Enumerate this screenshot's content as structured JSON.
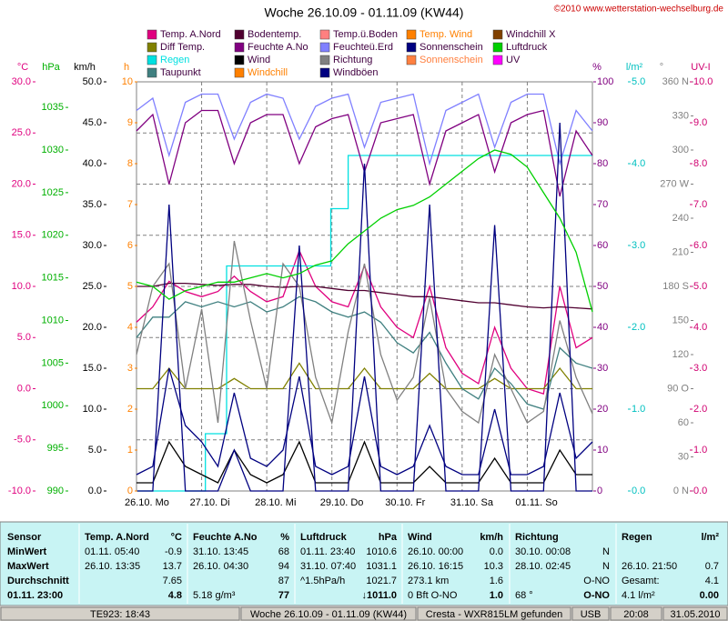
{
  "header": {
    "title": "Woche 26.10.09 - 01.11.09 (KW44)",
    "copyright": "©2010 www.wetterstation-wechselburg.de"
  },
  "chart_data": {
    "type": "line",
    "xlim": [
      0,
      168
    ],
    "day_starts": [
      0,
      24,
      48,
      72,
      96,
      120,
      144,
      168
    ],
    "categories": [
      "26.10. Mo",
      "27.10. Di",
      "28.10. Mi",
      "29.10. Do",
      "30.10. Fr",
      "31.10. Sa",
      "01.11. So"
    ],
    "x": [
      0,
      6,
      12,
      18,
      24,
      30,
      36,
      42,
      48,
      54,
      60,
      66,
      72,
      78,
      84,
      90,
      96,
      102,
      108,
      114,
      120,
      126,
      132,
      138,
      144,
      150,
      156,
      162,
      168
    ],
    "grid": true,
    "axes": [
      {
        "unit": "°C",
        "color": "#e0007f",
        "lim": [
          -10,
          30
        ],
        "ticks": [
          {
            "value": 30,
            "label": "30.0"
          },
          {
            "value": 25,
            "label": "25.0"
          },
          {
            "value": 20,
            "label": "20.0"
          },
          {
            "value": 15,
            "label": "15.0"
          },
          {
            "value": 10,
            "label": "10.0"
          },
          {
            "value": 5,
            "label": "5.0"
          },
          {
            "value": 0,
            "label": "0.0"
          },
          {
            "value": -5,
            "label": "-5.0"
          },
          {
            "value": -10,
            "label": "-10.0"
          }
        ]
      },
      {
        "unit": "hPa",
        "color": "#00b000",
        "lim": [
          990,
          1038
        ],
        "ticks": [
          1035,
          1030,
          1025,
          1020,
          1015,
          1010,
          1005,
          1000,
          995,
          990
        ]
      },
      {
        "unit": "km/h",
        "color": "#000000",
        "lim": [
          0,
          50
        ],
        "ticks": [
          {
            "value": 50,
            "label": "50.0"
          },
          {
            "value": 45,
            "label": "45.0"
          },
          {
            "value": 40,
            "label": "40.0"
          },
          {
            "value": 35,
            "label": "35.0"
          },
          {
            "value": 30,
            "label": "30.0"
          },
          {
            "value": 25,
            "label": "25.0"
          },
          {
            "value": 20,
            "label": "20.0"
          },
          {
            "value": 15,
            "label": "15.0"
          },
          {
            "value": 10,
            "label": "10.0"
          },
          {
            "value": 5,
            "label": "5.0"
          },
          {
            "value": 0,
            "label": "0.0"
          }
        ]
      },
      {
        "unit": "h",
        "color": "#ff8000",
        "lim": [
          0,
          10
        ],
        "ticks": [
          10,
          9,
          8,
          7,
          6,
          5,
          4,
          3,
          2,
          1,
          0
        ]
      },
      {
        "unit": "%",
        "color": "#800080",
        "lim": [
          0,
          100
        ],
        "ticks": [
          100,
          90,
          80,
          70,
          60,
          50,
          40,
          30,
          20,
          10,
          0
        ]
      },
      {
        "unit": "l/m²",
        "color": "#00c0c0",
        "lim": [
          0,
          5
        ],
        "ticks": [
          {
            "value": 5,
            "label": "5.0"
          },
          {
            "value": 4,
            "label": "4.0"
          },
          {
            "value": 3,
            "label": "3.0"
          },
          {
            "value": 2,
            "label": "2.0"
          },
          {
            "value": 1,
            "label": "1.0"
          },
          {
            "value": 0,
            "label": "0.0"
          }
        ]
      },
      {
        "unit": "°",
        "color": "#808080",
        "lim": [
          0,
          360
        ],
        "ticks": [
          {
            "value": 360,
            "label": "360 N"
          },
          330,
          300,
          {
            "value": 270,
            "label": "270 W"
          },
          240,
          210,
          {
            "value": 180,
            "label": "180 S"
          },
          150,
          120,
          {
            "value": 90,
            "label": "90 O"
          },
          60,
          30,
          {
            "value": 0,
            "label": "0 N"
          }
        ]
      },
      {
        "unit": "UV-I",
        "color": "#d00070",
        "lim": [
          0,
          10
        ],
        "ticks": [
          {
            "value": 10,
            "label": "10.0"
          },
          {
            "value": 9,
            "label": "9.0"
          },
          {
            "value": 8,
            "label": "8.0"
          },
          {
            "value": 7,
            "label": "7.0"
          },
          {
            "value": 6,
            "label": "6.0"
          },
          {
            "value": 5,
            "label": "5.0"
          },
          {
            "value": 4,
            "label": "4.0"
          },
          {
            "value": 3,
            "label": "3.0"
          },
          {
            "value": 2,
            "label": "2.0"
          },
          {
            "value": 1,
            "label": "1.0"
          },
          {
            "value": 0,
            "label": "0.0"
          }
        ]
      }
    ],
    "series": [
      {
        "name": "Temp. A.Nord",
        "color": "#e0007f",
        "axis": 0,
        "values": [
          6.5,
          8,
          10.5,
          9.5,
          9,
          9.5,
          11,
          9.5,
          8.5,
          9,
          13.5,
          10,
          8.5,
          8,
          12,
          8,
          6,
          5,
          10,
          4,
          1.5,
          0.5,
          6,
          2,
          0,
          -0.5,
          10,
          4,
          5
        ]
      },
      {
        "name": "Diff Temp.",
        "color": "#808000",
        "axis": 0,
        "values": [
          0,
          0,
          2,
          0,
          0,
          0,
          1,
          0,
          0,
          0,
          2.5,
          0,
          0,
          0,
          2,
          0,
          0,
          0,
          1.5,
          0,
          0,
          0,
          1,
          0,
          0,
          0,
          2,
          0,
          0
        ]
      },
      {
        "name": "Regen",
        "color": "#00e0e0",
        "axis": 5,
        "step": true,
        "x": [
          0,
          25.4,
          25.4,
          33.2,
          33.2,
          71.6,
          71.6,
          78,
          78,
          168
        ],
        "values": [
          0,
          0,
          0.7,
          0.7,
          2.75,
          2.75,
          3.45,
          3.45,
          4.1,
          4.1
        ]
      },
      {
        "name": "Taupunkt",
        "color": "#408080",
        "axis": 0,
        "values": [
          5,
          7,
          7,
          8.5,
          8,
          8.5,
          8,
          8.5,
          7.5,
          8,
          9,
          8.5,
          7.5,
          7,
          7.5,
          6.5,
          4.5,
          3.5,
          5.5,
          2.5,
          0,
          -1,
          2,
          0.5,
          -1.5,
          -2,
          4,
          2.5,
          2
        ]
      },
      {
        "name": "Bodentemp.",
        "color": "#500030",
        "axis": 0,
        "values": [
          10,
          10,
          10.3,
          10.3,
          10.2,
          10.1,
          10.2,
          10.2,
          10,
          9.9,
          10,
          10,
          9.8,
          9.6,
          9.6,
          9.4,
          9.2,
          9,
          9,
          8.8,
          8.6,
          8.4,
          8.4,
          8.2,
          8,
          7.9,
          8,
          7.9,
          7.8
        ]
      },
      {
        "name": "Feuchte A.No",
        "color": "#800080",
        "axis": 4,
        "values": [
          88,
          92,
          75,
          90,
          93,
          93,
          80,
          90,
          92,
          92,
          80,
          89,
          91,
          92,
          78,
          90,
          91,
          92,
          75,
          88,
          90,
          92,
          78,
          90,
          92,
          93,
          72,
          88,
          82
        ]
      },
      {
        "name": "Wind",
        "color": "#000000",
        "axis": 2,
        "values": [
          1,
          1,
          6,
          3,
          2,
          1,
          5,
          2,
          1,
          2,
          6,
          1,
          1,
          1,
          6,
          1,
          1,
          1,
          3,
          1,
          1,
          1,
          4,
          1,
          1,
          1,
          5,
          2,
          2
        ]
      },
      {
        "name": "Windchill",
        "color": "#ff8000"
      },
      {
        "name": "Temp.ü.Boden",
        "color": "#ff8080"
      },
      {
        "name": "Feuchteü.Erd",
        "color": "#8080ff",
        "axis": 4,
        "values": [
          93,
          96,
          82,
          95,
          97,
          97,
          86,
          95,
          97,
          96,
          86,
          94,
          96,
          97,
          84,
          95,
          96,
          97,
          80,
          93,
          95,
          97,
          84,
          95,
          97,
          97,
          80,
          93,
          88
        ]
      },
      {
        "name": "Richtung",
        "color": "#808080",
        "axis": 6,
        "values": [
          120,
          180,
          200,
          90,
          160,
          60,
          220,
          150,
          90,
          200,
          180,
          100,
          60,
          140,
          200,
          120,
          80,
          100,
          170,
          90,
          70,
          60,
          120,
          90,
          60,
          70,
          150,
          100,
          68
        ]
      },
      {
        "name": "Windböen",
        "color": "#000080",
        "axis": 2,
        "values": [
          2,
          3,
          15,
          8,
          6,
          3,
          12,
          4,
          3,
          5,
          14,
          3,
          2,
          3,
          14,
          3,
          2,
          3,
          8,
          3,
          2,
          2,
          10,
          2,
          2,
          3,
          12,
          4,
          6
        ]
      },
      {
        "name": "Temp. Wind",
        "color": "#ff8000"
      },
      {
        "name": "Sonnenschein",
        "color": "#000080",
        "axis": 3,
        "values": [
          0,
          0,
          7,
          0,
          0,
          0,
          1,
          0,
          0,
          0,
          6,
          0,
          0,
          0,
          8,
          0,
          0,
          0,
          7,
          0,
          0,
          0,
          6.5,
          0,
          0,
          0,
          9,
          0,
          0
        ]
      },
      {
        "name": "Sonnenschein",
        "color": "#ff8040"
      },
      {
        "name": "Windchill X",
        "color": "#804000"
      },
      {
        "name": "Luftdruck",
        "color": "#00d000",
        "axis": 1,
        "values": [
          1014.5,
          1014,
          1012.5,
          1013.5,
          1014,
          1014.5,
          1014.5,
          1015,
          1015.5,
          1015,
          1015.5,
          1016.5,
          1017,
          1019,
          1020.5,
          1022,
          1023,
          1023.5,
          1024.5,
          1026,
          1027.5,
          1029,
          1030,
          1029.5,
          1028,
          1025,
          1022,
          1018,
          1011
        ]
      },
      {
        "name": "UV",
        "color": "#ff00ff"
      }
    ]
  },
  "table": {
    "columns": [
      {
        "header": [
          "Sensor"
        ],
        "rows": [
          [
            "MinWert"
          ],
          [
            "MaxWert"
          ],
          [
            "Durchschnitt"
          ],
          [
            "01.11. 23:00"
          ]
        ]
      },
      {
        "header": [
          "Temp. A.Nord",
          "°C"
        ],
        "rows": [
          [
            "01.11. 05:40",
            "-0.9"
          ],
          [
            "26.10. 13:35",
            "13.7"
          ],
          [
            null,
            "7.65"
          ],
          [
            null,
            "4.8"
          ]
        ]
      },
      {
        "header": [
          "Feuchte A.No",
          "%"
        ],
        "rows": [
          [
            "31.10. 13:45",
            "68"
          ],
          [
            "26.10. 04:30",
            "94"
          ],
          [
            null,
            "87"
          ],
          [
            "5.18 g/m³",
            "77"
          ]
        ]
      },
      {
        "header": [
          "Luftdruck",
          "hPa"
        ],
        "rows": [
          [
            "01.11. 23:40",
            "1010.6"
          ],
          [
            "31.10. 07:40",
            "1031.1"
          ],
          [
            "^1.5hPa/h",
            "1021.7"
          ],
          [
            null,
            "↓1011.0"
          ]
        ]
      },
      {
        "header": [
          "Wind",
          "km/h"
        ],
        "rows": [
          [
            "26.10. 00:00",
            "0.0"
          ],
          [
            "26.10. 16:15",
            "10.3"
          ],
          [
            "273.1 km",
            "1.6"
          ],
          [
            "0 Bft O-NO",
            "1.0"
          ]
        ]
      },
      {
        "header": [
          "Richtung"
        ],
        "rows": [
          [
            "30.10. 00:08",
            "N"
          ],
          [
            "28.10. 02:45",
            "N"
          ],
          [
            null,
            "O-NO"
          ],
          [
            "68 °",
            "O-NO"
          ]
        ]
      },
      {
        "header": [
          "Regen",
          "l/m²"
        ],
        "rows": [
          [
            null,
            null
          ],
          [
            "26.10. 21:50",
            "0.7"
          ],
          [
            "Gesamt:",
            "4.1"
          ],
          [
            "4.1 l/m²",
            "0.00"
          ]
        ]
      }
    ]
  },
  "status": [
    "TE923: 18:43",
    "Woche 26.10.09 - 01.11.09 (KW44)",
    "Cresta - WXR815LM gefunden",
    "USB",
    "20:08",
    "31.05.2010"
  ]
}
